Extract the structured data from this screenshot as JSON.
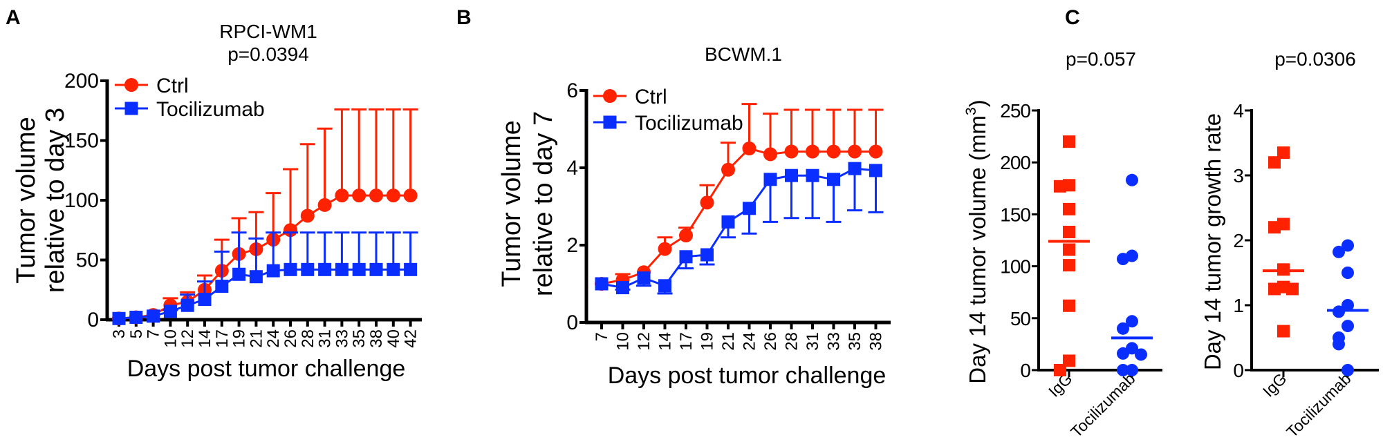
{
  "colors": {
    "ctrl": "#FF2200",
    "tocilizumab": "#0A2EFF",
    "axis": "#000000"
  },
  "panel_letters": [
    "A",
    "B",
    "C"
  ],
  "chart_data": [
    {
      "id": "A",
      "type": "line",
      "title": "RPCI-WM1",
      "subtitle": "p=0.0394",
      "xlabel": "Days post tumor challenge",
      "ylabel": [
        "Tumor volume",
        "relative to day 3"
      ],
      "ylim": [
        0,
        200
      ],
      "yticks": [
        0,
        50,
        100,
        150,
        200
      ],
      "categories": [
        "3",
        "5",
        "7",
        "10",
        "12",
        "14",
        "17",
        "19",
        "21",
        "24",
        "26",
        "28",
        "31",
        "33",
        "35",
        "38",
        "40",
        "42"
      ],
      "legend": "top-left",
      "series": [
        {
          "name": "Ctrl",
          "marker": "circle",
          "color": "#FF2200",
          "values": [
            1,
            2,
            4,
            12,
            15,
            25,
            41,
            55,
            59,
            67,
            75,
            87,
            96,
            104,
            104,
            104,
            104,
            104
          ],
          "err_upper": [
            1,
            2,
            4,
            18,
            23,
            37,
            67,
            85,
            90,
            106,
            126,
            147,
            160,
            176,
            176,
            176,
            176,
            176
          ]
        },
        {
          "name": "Tocilizumab",
          "marker": "square",
          "color": "#0A2EFF",
          "values": [
            1,
            2,
            3,
            7,
            12,
            17,
            28,
            38,
            36,
            41,
            42,
            42,
            42,
            42,
            42,
            42,
            42,
            42
          ],
          "err_upper": [
            1,
            2,
            3,
            8,
            21,
            32,
            57,
            73,
            68,
            73,
            73,
            73,
            73,
            73,
            73,
            73,
            73,
            73
          ]
        }
      ]
    },
    {
      "id": "B",
      "type": "line",
      "title": "BCWM.1",
      "xlabel": "Days post tumor challenge",
      "ylabel": [
        "Tumor volume",
        "relative to day 7"
      ],
      "ylim": [
        0,
        6
      ],
      "yticks": [
        0,
        2,
        4,
        6
      ],
      "categories": [
        "7",
        "10",
        "12",
        "14",
        "17",
        "19",
        "21",
        "24",
        "26",
        "28",
        "31",
        "33",
        "35",
        "38"
      ],
      "legend": "top-left",
      "series": [
        {
          "name": "Ctrl",
          "marker": "circle",
          "color": "#FF2200",
          "values": [
            1.0,
            1.1,
            1.3,
            1.9,
            2.25,
            3.1,
            3.95,
            4.5,
            4.35,
            4.42,
            4.42,
            4.42,
            4.42,
            4.42
          ],
          "err_upper": [
            1.0,
            1.25,
            1.3,
            2.2,
            2.45,
            3.55,
            4.65,
            5.65,
            5.4,
            5.5,
            5.5,
            5.5,
            5.5,
            5.5
          ]
        },
        {
          "name": "Tocilizumab",
          "marker": "square",
          "color": "#0A2EFF",
          "values": [
            1.0,
            0.9,
            1.15,
            0.95,
            1.7,
            1.75,
            2.6,
            2.95,
            3.7,
            3.8,
            3.8,
            3.7,
            3.98,
            3.93
          ],
          "err_lower": [
            1.0,
            0.85,
            0.95,
            0.75,
            1.4,
            1.5,
            2.2,
            2.3,
            2.6,
            2.7,
            2.7,
            2.6,
            2.9,
            2.85
          ]
        }
      ]
    },
    {
      "id": "C1",
      "type": "scatter",
      "title": "p=0.057",
      "ylabel": "Day 14 tumor volume (mm",
      "ylabel_sup": "3",
      "ylabel_end": ")",
      "ylim": [
        0,
        250
      ],
      "yticks": [
        0,
        50,
        100,
        150,
        200,
        250
      ],
      "categories": [
        "IgG",
        "Tocilizumab"
      ],
      "groups": [
        {
          "name": "IgG",
          "marker": "square",
          "color": "#FF2200",
          "median": 124,
          "values": [
            220,
            178,
            177,
            155,
            133,
            116,
            101,
            62,
            9,
            0
          ]
        },
        {
          "name": "Tocilizumab",
          "marker": "circle",
          "color": "#0A2EFF",
          "median": 31,
          "values": [
            183,
            110,
            107,
            47,
            40,
            21,
            16,
            15,
            0,
            0
          ]
        }
      ]
    },
    {
      "id": "C2",
      "type": "scatter",
      "title": "p=0.0306",
      "ylabel": "Day 14 tumor growth rate",
      "ylim": [
        0,
        4
      ],
      "yticks": [
        0,
        1,
        2,
        3,
        4
      ],
      "categories": [
        "IgG",
        "Tocilizumab"
      ],
      "groups": [
        {
          "name": "IgG",
          "marker": "square",
          "color": "#FF2200",
          "median": 1.53,
          "values": [
            3.35,
            3.2,
            2.25,
            2.2,
            1.55,
            1.28,
            1.25,
            1.25,
            0.6
          ]
        },
        {
          "name": "Tocilizumab",
          "marker": "circle",
          "color": "#0A2EFF",
          "median": 0.92,
          "values": [
            1.92,
            1.82,
            1.5,
            1.0,
            0.9,
            0.68,
            0.5,
            0.4,
            0
          ]
        }
      ]
    }
  ]
}
